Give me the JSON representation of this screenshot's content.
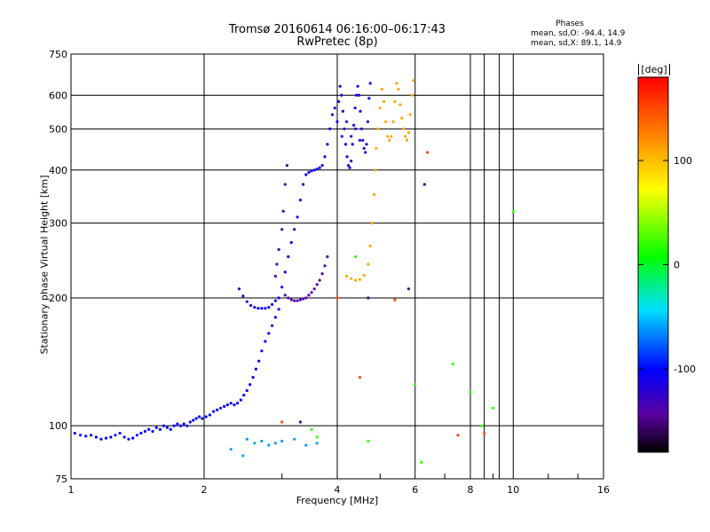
{
  "title_line1": "Tromsø 20160614 06:16:00–06:17:43",
  "title_line2": "RwPretec (8p)",
  "stats_title": "Phases",
  "stats_o": "mean, sd,O: -94.4, 14.9",
  "stats_x": "mean, sd,X:  89.1, 14.9",
  "colorbar": {
    "unit_label": "[deg]",
    "range": [
      -180,
      180
    ],
    "ticks": [
      100,
      0,
      -100
    ],
    "tick_labels": [
      "100",
      "0",
      "-100"
    ]
  },
  "chart_data": {
    "type": "scatter",
    "xlabel": "Frequency [MHz]",
    "ylabel": "Stationary phase Virtual Height [km]",
    "x_scale": "log",
    "y_scale": "log",
    "xlim": [
      1,
      16
    ],
    "ylim": [
      75,
      750
    ],
    "grid": true,
    "x_ticks": [
      1,
      2,
      4,
      6,
      8,
      10,
      16
    ],
    "x_tick_labels": [
      "1",
      "2",
      "4",
      "6",
      "8",
      "10",
      "16"
    ],
    "y_ticks": [
      75,
      100,
      200,
      300,
      400,
      500,
      600,
      750
    ],
    "y_tick_labels": [
      "75",
      "100",
      "200",
      "300",
      "400",
      "500",
      "600",
      "750"
    ],
    "point_groups": [
      {
        "phase": -100,
        "points": [
          [
            1.02,
            96
          ],
          [
            1.05,
            95
          ],
          [
            1.08,
            94.5
          ],
          [
            1.11,
            95
          ],
          [
            1.14,
            94
          ],
          [
            1.17,
            93
          ],
          [
            1.2,
            93.5
          ],
          [
            1.23,
            94
          ],
          [
            1.26,
            95
          ],
          [
            1.29,
            96
          ],
          [
            1.32,
            94
          ],
          [
            1.35,
            93
          ],
          [
            1.38,
            93.5
          ],
          [
            1.41,
            95
          ],
          [
            1.44,
            96
          ],
          [
            1.47,
            97
          ],
          [
            1.5,
            98
          ],
          [
            1.53,
            97
          ],
          [
            1.56,
            99
          ],
          [
            1.59,
            98
          ],
          [
            1.62,
            100
          ],
          [
            1.65,
            99
          ],
          [
            1.68,
            98
          ],
          [
            1.71,
            100
          ],
          [
            1.74,
            101
          ],
          [
            1.77,
            100
          ],
          [
            1.8,
            101
          ],
          [
            1.83,
            100
          ],
          [
            1.86,
            102
          ],
          [
            1.89,
            103
          ],
          [
            1.92,
            104
          ],
          [
            1.95,
            105
          ],
          [
            1.98,
            104
          ],
          [
            2.02,
            105
          ],
          [
            2.06,
            106
          ],
          [
            2.1,
            108
          ],
          [
            2.14,
            109
          ],
          [
            2.18,
            110
          ],
          [
            2.22,
            111
          ],
          [
            2.26,
            112
          ],
          [
            2.3,
            113
          ],
          [
            2.34,
            112
          ],
          [
            2.38,
            113
          ],
          [
            2.42,
            115
          ],
          [
            2.46,
            118
          ],
          [
            2.5,
            121
          ],
          [
            2.54,
            125
          ],
          [
            2.58,
            130
          ],
          [
            2.62,
            136
          ],
          [
            2.66,
            142
          ],
          [
            2.7,
            150
          ],
          [
            2.75,
            158
          ],
          [
            2.8,
            165
          ],
          [
            2.85,
            172
          ],
          [
            2.9,
            180
          ],
          [
            2.95,
            188
          ]
        ]
      },
      {
        "phase": -110,
        "points": [
          [
            2.4,
            210
          ],
          [
            2.45,
            202
          ],
          [
            2.5,
            196
          ],
          [
            2.55,
            192
          ],
          [
            2.6,
            190
          ],
          [
            2.65,
            189
          ],
          [
            2.7,
            189
          ],
          [
            2.75,
            189
          ],
          [
            2.8,
            190
          ],
          [
            2.85,
            193
          ],
          [
            2.9,
            197
          ],
          [
            2.95,
            200
          ],
          [
            3.0,
            212
          ],
          [
            3.05,
            230
          ],
          [
            3.1,
            250
          ],
          [
            3.15,
            270
          ],
          [
            3.2,
            290
          ],
          [
            3.25,
            310
          ],
          [
            3.3,
            340
          ],
          [
            3.35,
            370
          ],
          [
            3.4,
            390
          ],
          [
            3.45,
            395
          ],
          [
            3.5,
            398
          ],
          [
            3.55,
            400
          ],
          [
            3.6,
            402
          ],
          [
            3.65,
            405
          ],
          [
            3.7,
            410
          ],
          [
            3.75,
            430
          ],
          [
            3.8,
            460
          ],
          [
            3.85,
            500
          ],
          [
            3.9,
            540
          ],
          [
            3.95,
            560
          ]
        ]
      },
      {
        "phase": -140,
        "points": [
          [
            3.05,
            203
          ],
          [
            3.1,
            200
          ],
          [
            3.15,
            198
          ],
          [
            3.2,
            197
          ],
          [
            3.25,
            197
          ],
          [
            3.3,
            198
          ],
          [
            3.35,
            199
          ],
          [
            3.4,
            200
          ],
          [
            3.45,
            203
          ],
          [
            3.5,
            206
          ],
          [
            3.55,
            210
          ],
          [
            3.6,
            215
          ],
          [
            3.65,
            220
          ],
          [
            3.7,
            228
          ],
          [
            3.75,
            238
          ],
          [
            3.8,
            250
          ],
          [
            2.9,
            225
          ],
          [
            2.92,
            240
          ],
          [
            2.95,
            260
          ],
          [
            3.0,
            290
          ],
          [
            3.02,
            320
          ],
          [
            3.05,
            370
          ],
          [
            3.08,
            410
          ]
        ]
      },
      {
        "phase": -115,
        "points": [
          [
            4.0,
            520
          ],
          [
            4.03,
            580
          ],
          [
            4.06,
            630
          ],
          [
            4.09,
            600
          ],
          [
            4.12,
            550
          ],
          [
            4.15,
            500
          ],
          [
            4.18,
            460
          ],
          [
            4.21,
            430
          ],
          [
            4.24,
            410
          ],
          [
            4.27,
            405
          ],
          [
            4.3,
            420
          ],
          [
            4.33,
            460
          ],
          [
            4.36,
            510
          ],
          [
            4.39,
            560
          ],
          [
            4.42,
            600
          ],
          [
            4.45,
            630
          ],
          [
            4.48,
            600
          ],
          [
            4.51,
            550
          ],
          [
            4.54,
            500
          ],
          [
            4.57,
            470
          ],
          [
            4.6,
            450
          ],
          [
            4.63,
            440
          ],
          [
            4.66,
            460
          ],
          [
            4.69,
            520
          ],
          [
            4.72,
            590
          ],
          [
            4.75,
            640
          ],
          [
            4.1,
            480
          ],
          [
            4.2,
            520
          ],
          [
            4.3,
            480
          ],
          [
            4.4,
            500
          ],
          [
            4.5,
            470
          ]
        ]
      },
      {
        "phase": 110,
        "points": [
          [
            4.2,
            225
          ],
          [
            4.3,
            222
          ],
          [
            4.4,
            220
          ],
          [
            4.5,
            221
          ],
          [
            4.6,
            226
          ],
          [
            4.7,
            240
          ],
          [
            4.75,
            265
          ],
          [
            4.8,
            300
          ],
          [
            4.85,
            350
          ],
          [
            4.88,
            400
          ],
          [
            4.9,
            450
          ],
          [
            4.95,
            500
          ],
          [
            5.0,
            560
          ],
          [
            5.05,
            620
          ],
          [
            5.1,
            580
          ],
          [
            5.15,
            520
          ],
          [
            5.2,
            480
          ],
          [
            5.25,
            470
          ],
          [
            5.3,
            480
          ],
          [
            5.35,
            520
          ],
          [
            5.4,
            580
          ],
          [
            5.45,
            640
          ],
          [
            5.5,
            620
          ],
          [
            5.55,
            570
          ],
          [
            5.6,
            530
          ],
          [
            5.65,
            500
          ],
          [
            5.7,
            480
          ],
          [
            5.75,
            470
          ],
          [
            5.8,
            490
          ],
          [
            5.85,
            540
          ],
          [
            5.9,
            600
          ],
          [
            5.95,
            650
          ]
        ]
      },
      {
        "phase": -60,
        "points": [
          [
            2.5,
            93
          ],
          [
            2.6,
            91
          ],
          [
            2.7,
            92
          ],
          [
            2.8,
            90
          ],
          [
            2.9,
            91
          ],
          [
            3.0,
            92
          ],
          [
            3.2,
            93
          ],
          [
            3.4,
            90
          ],
          [
            3.6,
            91
          ],
          [
            2.3,
            88
          ],
          [
            2.45,
            85
          ]
        ]
      },
      {
        "phase": 20,
        "points": [
          [
            4.7,
            92
          ],
          [
            3.6,
            94
          ],
          [
            4.4,
            250
          ],
          [
            6.2,
            82
          ],
          [
            7.3,
            140
          ],
          [
            8.0,
            120
          ],
          [
            9.0,
            110
          ],
          [
            10.0,
            320
          ],
          [
            6.0,
            125
          ],
          [
            8.5,
            100
          ],
          [
            3.5,
            98
          ]
        ]
      },
      {
        "phase": 150,
        "points": [
          [
            4.5,
            130
          ],
          [
            4.0,
            200
          ],
          [
            6.4,
            440
          ],
          [
            7.5,
            95
          ],
          [
            8.6,
            96
          ],
          [
            5.4,
            198
          ],
          [
            3.0,
            102
          ]
        ]
      },
      {
        "phase": -150,
        "points": [
          [
            6.3,
            370
          ],
          [
            4.7,
            200
          ],
          [
            3.3,
            102
          ],
          [
            5.8,
            210
          ]
        ]
      }
    ]
  }
}
